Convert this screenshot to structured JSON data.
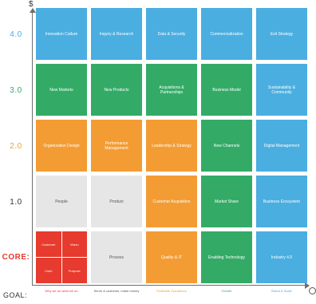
{
  "axis": {
    "top_letter": "$",
    "goal_label": "GOAL:",
    "colors": {
      "axis": "#6e6e6e"
    }
  },
  "y_levels": [
    {
      "label": "4.0",
      "color": "#4aaee0"
    },
    {
      "label": "3.0",
      "color": "#33ab66"
    },
    {
      "label": "2.0",
      "color": "#f39c33"
    },
    {
      "label": "1.0",
      "color": "#333333"
    },
    {
      "label": "CORE:",
      "color": "#e63b2e"
    }
  ],
  "rows": [
    [
      "Innovation Culture",
      "Inquiry & Research",
      "Data & Security",
      "Commercialization",
      "Exit Strategy"
    ],
    [
      "New Markets",
      "New Products",
      "Acquisitions & Partnerships",
      "Business Model",
      "Sustainability & Community"
    ],
    [
      "Organization Design",
      "Performance Management",
      "Leadership & Strategy",
      "New Channels",
      "Digital Management"
    ],
    [
      "People",
      "Product",
      "Customer Acquisition",
      "Market Share",
      "Business Ecosystem"
    ],
    [
      "",
      "Process",
      "Quality & IT",
      "Enabling Technology",
      "Industry 4.0"
    ]
  ],
  "row_colors": [
    [
      "blue",
      "blue",
      "blue",
      "blue",
      "blue"
    ],
    [
      "green",
      "green",
      "green",
      "green",
      "blue"
    ],
    [
      "orange",
      "orange",
      "orange",
      "green",
      "blue"
    ],
    [
      "gray",
      "gray",
      "orange",
      "green",
      "blue"
    ],
    [
      "red",
      "gray",
      "orange",
      "green",
      "blue"
    ]
  ],
  "core_cells": [
    "Customer",
    "Vision",
    "Cash",
    "Purpose"
  ],
  "goals": [
    {
      "label": "Why we do what we do",
      "color": "#e63b2e"
    },
    {
      "label": "Serve & customer, make money",
      "color": "#555555"
    },
    {
      "label": "Profitable Operations",
      "color": "#f39c33"
    },
    {
      "label": "Growth",
      "color": "#33ab66"
    },
    {
      "label": "Brand & Scale",
      "color": "#4aaee0"
    }
  ]
}
